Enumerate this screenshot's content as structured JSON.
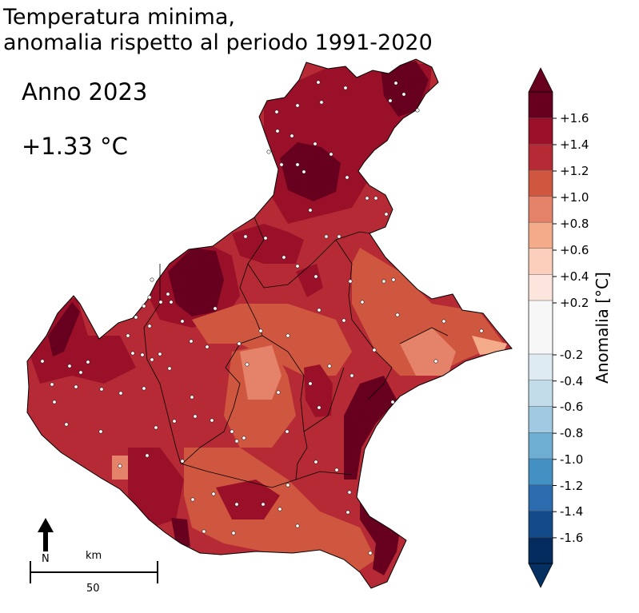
{
  "title": "Temperatura minima,\nanomalia rispetto al periodo 1991-2020",
  "year_label": "Anno 2023",
  "mean_anomaly": "+1.33 °C",
  "colorbar": {
    "title": "Anomalia [°C]",
    "ticks": [
      "+1.6",
      "+1.4",
      "+1.2",
      "+1.0",
      "+0.8",
      "+0.6",
      "+0.4",
      "+0.2",
      "-0.2",
      "-0.4",
      "-0.6",
      "-0.8",
      "-1.0",
      "-1.2",
      "-1.4",
      "-1.6"
    ],
    "colors": {
      "over": "#67001f",
      "pos": [
        "#67001f",
        "#9a1029",
        "#b52a34",
        "#d0573f",
        "#e5836a",
        "#f4ab8a",
        "#fbcfbb",
        "#fbe5dd"
      ],
      "neutral": "#f7f7f7",
      "neg": [
        "#deebf3",
        "#c3dcea",
        "#9fcae1",
        "#6eaed3",
        "#4291c2",
        "#2a6cad",
        "#124a8a",
        "#052c5e"
      ],
      "under": "#053061"
    }
  },
  "scale_bar": {
    "unit": "km",
    "length": "50"
  },
  "north_label": "N",
  "map_colors": {
    "base": "#b52a34",
    "hot": "#67001f",
    "warm": "#9a1029",
    "mild": "#d0573f",
    "cool": "#e5836a",
    "coolest": "#f4ab8a"
  }
}
